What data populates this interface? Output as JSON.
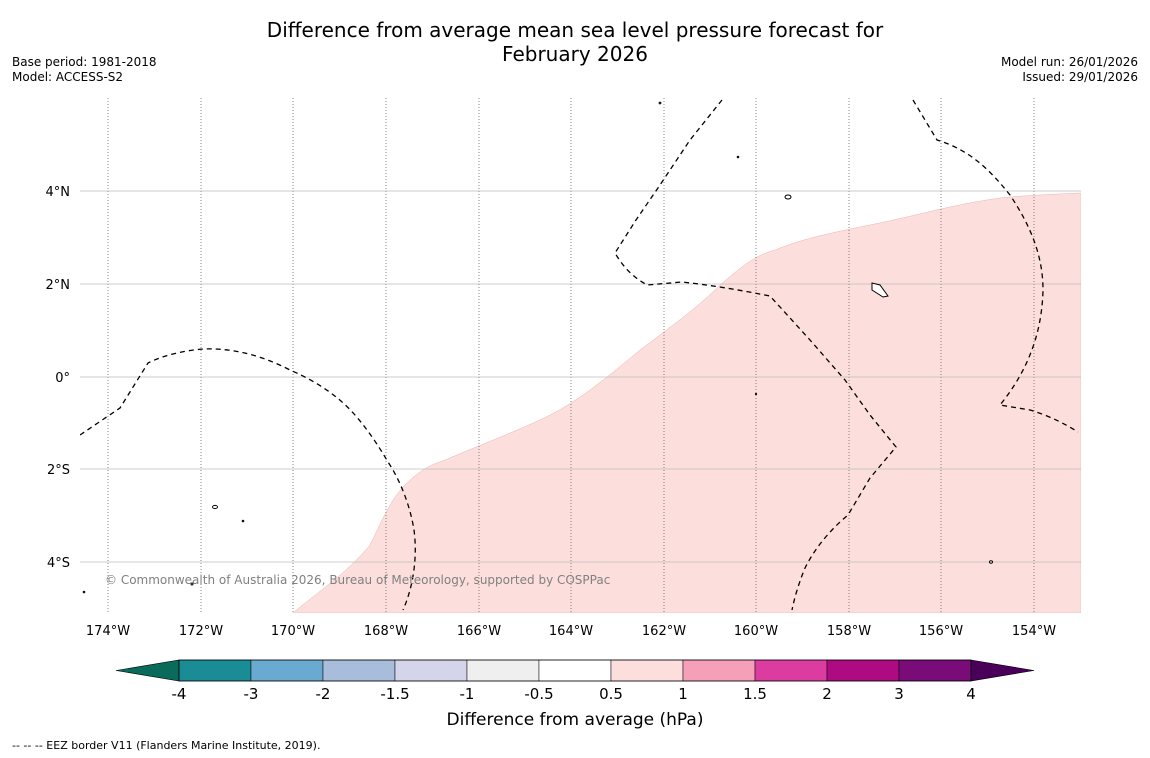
{
  "title_line1": "Difference from average mean sea level pressure forecast for",
  "title_line2": "February 2026",
  "base_period": "Base period: 1981-2018",
  "model": "Model: ACCESS-S2",
  "model_run": "Model run: 26/01/2026",
  "issued": "Issued: 29/01/2026",
  "copyright": "© Commonwealth of Australia 2026, Bureau of Meteorology, supported by COSPPac",
  "footer_note": "--  --  -- EEZ border V11 (Flanders Marine Institute, 2019).",
  "map": {
    "lon_labels": [
      "174°W",
      "172°W",
      "170°W",
      "168°W",
      "166°W",
      "164°W",
      "162°W",
      "160°W",
      "158°W",
      "156°W",
      "154°W"
    ],
    "lat_labels": [
      "4°N",
      "2°N",
      "0°",
      "2°S",
      "4°S"
    ],
    "anomaly_region": "0.5 to 1 hPa",
    "anomaly_color": "#fcdfdd"
  },
  "colorbar": {
    "label": "Difference from average (hPa)",
    "ticks": [
      "-4",
      "-3",
      "-2",
      "-1.5",
      "-1",
      "-0.5",
      "0.5",
      "1",
      "1.5",
      "2",
      "3",
      "4"
    ],
    "low_extend_color": "#0a6b5a",
    "high_extend_color": "#4a0058",
    "colors": [
      "#1a8c96",
      "#6aaad0",
      "#a8bcdc",
      "#d4d4ea",
      "#efefef",
      "#ffffff",
      "#fcdfdd",
      "#f59fb8",
      "#dc3ca0",
      "#ae0a82",
      "#7a0c7a"
    ]
  }
}
